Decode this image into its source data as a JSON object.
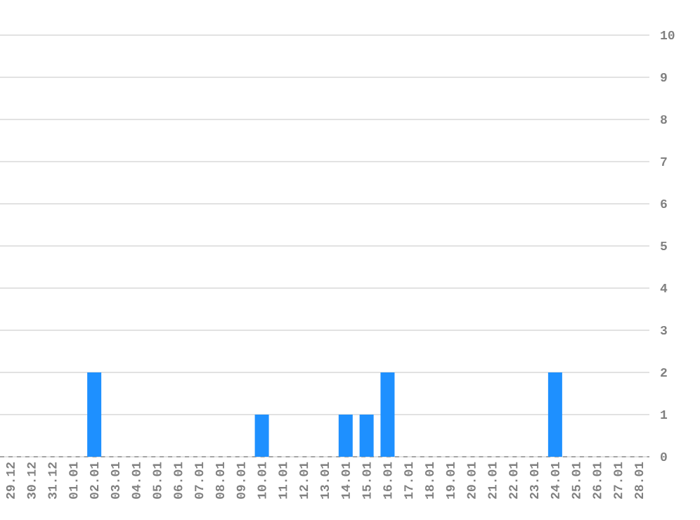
{
  "chart_data": {
    "type": "bar",
    "categories": [
      "29.12",
      "30.12",
      "31.12",
      "01.01",
      "02.01",
      "03.01",
      "04.01",
      "05.01",
      "06.01",
      "07.01",
      "08.01",
      "09.01",
      "10.01",
      "11.01",
      "12.01",
      "13.01",
      "14.01",
      "15.01",
      "16.01",
      "17.01",
      "18.01",
      "19.01",
      "20.01",
      "21.01",
      "22.01",
      "23.01",
      "24.01",
      "25.01",
      "26.01",
      "27.01",
      "28.01"
    ],
    "values": [
      0,
      0,
      0,
      0,
      2,
      0,
      0,
      0,
      0,
      0,
      0,
      0,
      1,
      0,
      0,
      0,
      1,
      1,
      2,
      0,
      0,
      0,
      0,
      0,
      0,
      0,
      2,
      0,
      0,
      0,
      0
    ],
    "color": "#1e90ff",
    "ylim": [
      0,
      10
    ],
    "yticks": [
      0,
      1,
      2,
      3,
      4,
      5,
      6,
      7,
      8,
      9,
      10
    ],
    "grid": "y"
  }
}
